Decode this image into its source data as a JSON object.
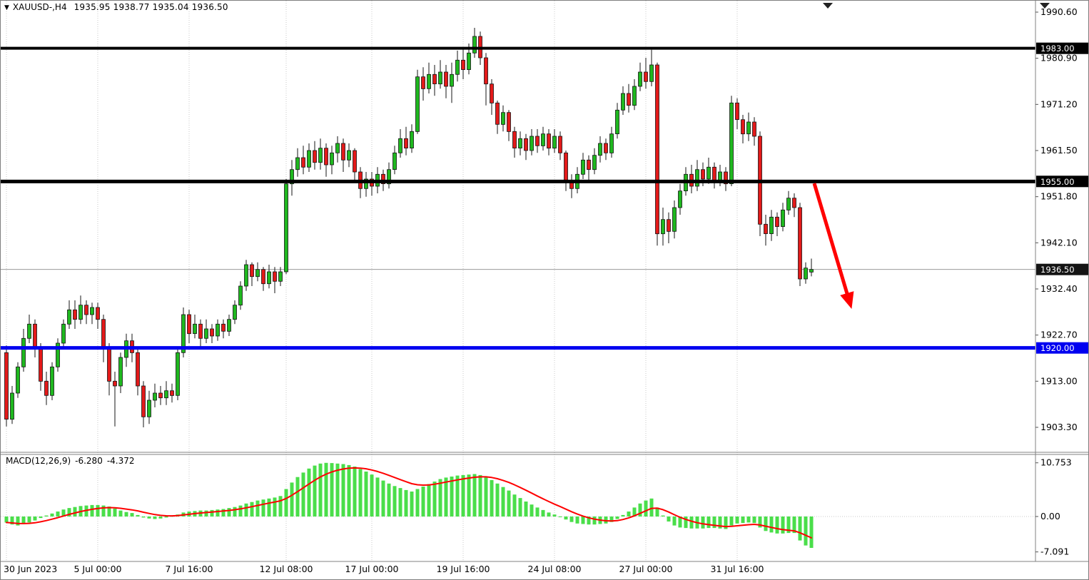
{
  "header": {
    "collapse_icon": "▼",
    "symbol_period": "XAUUSD-,H4",
    "ohlc_values": "1935.95 1938.77 1935.04 1936.50",
    "open": 1935.95,
    "high": 1938.77,
    "low": 1935.04,
    "close": 1936.5
  },
  "macd": {
    "name": "MACD(12,26,9)",
    "main_value": "-6.280",
    "signal_value": "-4.372"
  },
  "colors": {
    "candle_up": "#1fb81f",
    "candle_down": "#e31a1a",
    "candle_border": "#141414",
    "macd_bar": "#4ade4a",
    "signal": "#ff0000",
    "grid": "#c9c9c9",
    "axis_text": "#000000",
    "badge_bg": "#141414",
    "badge_text": "#ffffff",
    "current_line": "#9a9a9a",
    "frame": "#808080"
  },
  "chart_data": {
    "type": "candlestick",
    "symbol": "XAUUSD-",
    "timeframe": "H4",
    "title": "XAUUSD- H4 with MACD(12,26,9)",
    "grid": "vertical-dotted",
    "price_range_visible": [
      1898.2,
      1993.0
    ],
    "price_decimals": 2,
    "price_axis_ticks": [
      1990.6,
      1980.9,
      1971.2,
      1961.5,
      1951.8,
      1942.1,
      1932.4,
      1922.7,
      1913.0,
      1903.3
    ],
    "x_axis_labels": [
      {
        "index": 0,
        "label": "30 Jun 2023"
      },
      {
        "index": 16,
        "label": "5 Jul 00:00"
      },
      {
        "index": 32,
        "label": "7 Jul 16:00"
      },
      {
        "index": 49,
        "label": "12 Jul 08:00"
      },
      {
        "index": 64,
        "label": "17 Jul 00:00"
      },
      {
        "index": 80,
        "label": "19 Jul 16:00"
      },
      {
        "index": 96,
        "label": "24 Jul 08:00"
      },
      {
        "index": 112,
        "label": "27 Jul 00:00"
      },
      {
        "index": 128,
        "label": "31 Jul 16:00"
      }
    ],
    "horizontal_levels": [
      {
        "price": 1983.0,
        "label": "1983.00",
        "color": "#000000",
        "thickness": 4
      },
      {
        "price": 1955.0,
        "label": "1955.00",
        "color": "#000000",
        "thickness": 5
      },
      {
        "price": 1920.0,
        "label": "1920.00",
        "color": "#0000f0",
        "thickness": 5
      }
    ],
    "current_price": {
      "price": 1936.5,
      "label": "1936.50"
    },
    "annotation_arrow": {
      "from_index": 141.5,
      "from_price": 1954.6,
      "to_index": 147.8,
      "to_price": 1929.2,
      "color": "#ff0000"
    },
    "candles": [
      [
        1919.0,
        1920.5,
        1903.5,
        1905.0
      ],
      [
        1905.0,
        1912.0,
        1904.0,
        1910.5
      ],
      [
        1910.5,
        1917.0,
        1909.5,
        1916.0
      ],
      [
        1916.0,
        1924.0,
        1915.0,
        1922.0
      ],
      [
        1922.0,
        1927.0,
        1921.0,
        1925.0
      ],
      [
        1925.0,
        1926.0,
        1918.0,
        1920.0
      ],
      [
        1920.0,
        1921.0,
        1911.0,
        1913.0
      ],
      [
        1913.0,
        1915.0,
        1908.0,
        1910.0
      ],
      [
        1910.0,
        1917.0,
        1909.0,
        1916.0
      ],
      [
        1916.0,
        1922.0,
        1915.0,
        1921.0
      ],
      [
        1921.0,
        1926.0,
        1920.0,
        1925.0
      ],
      [
        1925.0,
        1930.0,
        1924.0,
        1928.0
      ],
      [
        1928.0,
        1930.0,
        1924.0,
        1926.0
      ],
      [
        1926.0,
        1931.0,
        1925.0,
        1929.0
      ],
      [
        1929.0,
        1930.0,
        1925.0,
        1927.0
      ],
      [
        1927.0,
        1929.5,
        1925.0,
        1928.5
      ],
      [
        1928.5,
        1929.5,
        1924.0,
        1926.0
      ],
      [
        1926.0,
        1927.0,
        1917.0,
        1920.0
      ],
      [
        1920.0,
        1921.0,
        1910.0,
        1913.0
      ],
      [
        1913.0,
        1915.0,
        1903.5,
        1912.0
      ],
      [
        1912.0,
        1919.0,
        1910.5,
        1918.0
      ],
      [
        1918.0,
        1923.0,
        1916.0,
        1921.5
      ],
      [
        1921.5,
        1923.0,
        1917.0,
        1919.0
      ],
      [
        1919.0,
        1920.0,
        1910.0,
        1912.0
      ],
      [
        1912.0,
        1913.0,
        1903.3,
        1905.5
      ],
      [
        1905.5,
        1911.0,
        1904.0,
        1909.0
      ],
      [
        1909.0,
        1912.5,
        1907.5,
        1910.5
      ],
      [
        1910.5,
        1912.0,
        1908.0,
        1909.5
      ],
      [
        1909.5,
        1913.0,
        1908.0,
        1911.0
      ],
      [
        1911.0,
        1912.5,
        1908.5,
        1910.0
      ],
      [
        1910.0,
        1920.0,
        1909.0,
        1919.0
      ],
      [
        1919.0,
        1928.5,
        1918.0,
        1927.0
      ],
      [
        1927.0,
        1928.0,
        1921.0,
        1923.0
      ],
      [
        1923.0,
        1927.0,
        1922.0,
        1925.0
      ],
      [
        1925.0,
        1926.0,
        1920.0,
        1922.0
      ],
      [
        1922.0,
        1926.0,
        1921.0,
        1924.0
      ],
      [
        1924.0,
        1925.0,
        1921.0,
        1922.5
      ],
      [
        1922.5,
        1926.0,
        1921.5,
        1925.0
      ],
      [
        1925.0,
        1926.0,
        1922.0,
        1923.5
      ],
      [
        1923.5,
        1927.0,
        1922.5,
        1926.0
      ],
      [
        1926.0,
        1930.0,
        1925.0,
        1929.0
      ],
      [
        1929.0,
        1934.0,
        1928.0,
        1933.0
      ],
      [
        1933.0,
        1938.5,
        1932.0,
        1937.5
      ],
      [
        1937.5,
        1938.0,
        1933.0,
        1935.0
      ],
      [
        1935.0,
        1938.0,
        1934.0,
        1936.5
      ],
      [
        1936.5,
        1937.0,
        1932.0,
        1933.5
      ],
      [
        1933.5,
        1937.5,
        1932.5,
        1936.0
      ],
      [
        1936.0,
        1937.0,
        1931.5,
        1934.0
      ],
      [
        1934.0,
        1937.0,
        1933.0,
        1936.0
      ],
      [
        1936.0,
        1955.5,
        1935.5,
        1954.5
      ],
      [
        1954.5,
        1959.5,
        1952.0,
        1957.5
      ],
      [
        1957.5,
        1962.0,
        1956.0,
        1960.0
      ],
      [
        1960.0,
        1962.5,
        1956.5,
        1958.0
      ],
      [
        1958.0,
        1963.0,
        1957.0,
        1961.5
      ],
      [
        1961.5,
        1963.5,
        1957.5,
        1959.0
      ],
      [
        1959.0,
        1964.0,
        1957.5,
        1962.0
      ],
      [
        1962.0,
        1963.0,
        1956.0,
        1958.5
      ],
      [
        1958.5,
        1962.5,
        1956.5,
        1961.0
      ],
      [
        1961.0,
        1964.5,
        1959.0,
        1963.0
      ],
      [
        1963.0,
        1964.0,
        1957.0,
        1959.5
      ],
      [
        1959.5,
        1963.0,
        1958.0,
        1961.5
      ],
      [
        1961.5,
        1962.0,
        1955.0,
        1957.0
      ],
      [
        1957.0,
        1958.0,
        1951.5,
        1953.5
      ],
      [
        1953.5,
        1957.0,
        1951.8,
        1955.5
      ],
      [
        1955.5,
        1957.0,
        1952.0,
        1954.0
      ],
      [
        1954.0,
        1958.0,
        1952.5,
        1956.5
      ],
      [
        1956.5,
        1957.5,
        1953.0,
        1954.5
      ],
      [
        1954.5,
        1959.0,
        1953.5,
        1957.5
      ],
      [
        1957.5,
        1962.5,
        1956.5,
        1961.0
      ],
      [
        1961.0,
        1966.0,
        1960.0,
        1964.0
      ],
      [
        1964.0,
        1966.5,
        1960.5,
        1962.0
      ],
      [
        1962.0,
        1967.0,
        1961.0,
        1965.5
      ],
      [
        1965.5,
        1978.5,
        1965.0,
        1977.0
      ],
      [
        1977.0,
        1979.0,
        1972.0,
        1974.5
      ],
      [
        1974.5,
        1980.0,
        1973.5,
        1977.5
      ],
      [
        1977.5,
        1979.5,
        1973.0,
        1975.5
      ],
      [
        1975.5,
        1980.5,
        1974.5,
        1978.0
      ],
      [
        1978.0,
        1979.5,
        1972.5,
        1975.0
      ],
      [
        1975.0,
        1980.0,
        1971.5,
        1977.5
      ],
      [
        1977.5,
        1982.5,
        1976.0,
        1980.5
      ],
      [
        1980.5,
        1983.0,
        1976.5,
        1978.5
      ],
      [
        1978.5,
        1984.0,
        1977.5,
        1982.0
      ],
      [
        1982.0,
        1987.3,
        1981.0,
        1985.5
      ],
      [
        1985.5,
        1986.5,
        1979.5,
        1981.0
      ],
      [
        1981.0,
        1982.0,
        1971.0,
        1975.5
      ],
      [
        1975.5,
        1976.5,
        1969.0,
        1971.5
      ],
      [
        1971.5,
        1972.0,
        1965.0,
        1967.0
      ],
      [
        1967.0,
        1971.0,
        1965.5,
        1969.5
      ],
      [
        1969.5,
        1970.0,
        1963.5,
        1965.5
      ],
      [
        1965.5,
        1966.5,
        1960.0,
        1962.0
      ],
      [
        1962.0,
        1965.5,
        1960.5,
        1964.0
      ],
      [
        1964.0,
        1965.0,
        1959.5,
        1961.5
      ],
      [
        1961.5,
        1966.0,
        1960.5,
        1964.5
      ],
      [
        1964.5,
        1966.0,
        1961.0,
        1962.5
      ],
      [
        1962.5,
        1966.5,
        1961.5,
        1965.0
      ],
      [
        1965.0,
        1966.0,
        1960.5,
        1962.0
      ],
      [
        1962.0,
        1966.0,
        1961.0,
        1964.5
      ],
      [
        1964.5,
        1965.5,
        1959.5,
        1961.0
      ],
      [
        1961.0,
        1961.5,
        1953.0,
        1955.0
      ],
      [
        1955.0,
        1956.5,
        1951.5,
        1953.5
      ],
      [
        1953.5,
        1958.0,
        1952.5,
        1956.5
      ],
      [
        1956.5,
        1961.0,
        1955.5,
        1959.5
      ],
      [
        1959.5,
        1960.5,
        1955.0,
        1957.5
      ],
      [
        1957.5,
        1962.0,
        1956.5,
        1960.5
      ],
      [
        1960.5,
        1964.5,
        1959.0,
        1963.0
      ],
      [
        1963.0,
        1964.0,
        1959.5,
        1961.0
      ],
      [
        1961.0,
        1966.5,
        1960.0,
        1965.0
      ],
      [
        1965.0,
        1971.5,
        1964.0,
        1970.0
      ],
      [
        1970.0,
        1975.0,
        1969.0,
        1973.5
      ],
      [
        1973.5,
        1975.5,
        1969.5,
        1971.0
      ],
      [
        1971.0,
        1976.5,
        1970.0,
        1975.0
      ],
      [
        1975.0,
        1980.0,
        1974.0,
        1978.0
      ],
      [
        1978.0,
        1981.0,
        1974.5,
        1976.0
      ],
      [
        1976.0,
        1982.7,
        1975.0,
        1979.5
      ],
      [
        1979.5,
        1980.0,
        1941.5,
        1944.0
      ],
      [
        1944.0,
        1949.5,
        1941.5,
        1947.0
      ],
      [
        1947.0,
        1948.5,
        1942.0,
        1944.5
      ],
      [
        1944.5,
        1951.0,
        1943.0,
        1949.5
      ],
      [
        1949.5,
        1954.5,
        1948.0,
        1953.0
      ],
      [
        1953.0,
        1958.0,
        1952.0,
        1956.5
      ],
      [
        1956.5,
        1958.5,
        1952.5,
        1954.0
      ],
      [
        1954.0,
        1959.5,
        1953.0,
        1957.5
      ],
      [
        1957.5,
        1959.0,
        1954.0,
        1955.5
      ],
      [
        1955.5,
        1960.0,
        1954.5,
        1958.0
      ],
      [
        1958.0,
        1959.0,
        1953.5,
        1955.0
      ],
      [
        1955.0,
        1958.5,
        1954.0,
        1957.0
      ],
      [
        1957.0,
        1958.0,
        1953.0,
        1954.5
      ],
      [
        1954.5,
        1973.0,
        1954.0,
        1971.5
      ],
      [
        1971.5,
        1972.5,
        1966.0,
        1968.0
      ],
      [
        1968.0,
        1969.0,
        1963.0,
        1965.0
      ],
      [
        1965.0,
        1969.5,
        1963.5,
        1967.5
      ],
      [
        1967.5,
        1968.5,
        1962.5,
        1964.5
      ],
      [
        1964.5,
        1965.5,
        1943.5,
        1946.0
      ],
      [
        1946.0,
        1948.0,
        1941.5,
        1944.0
      ],
      [
        1944.0,
        1949.0,
        1942.5,
        1947.5
      ],
      [
        1947.5,
        1948.5,
        1943.5,
        1945.5
      ],
      [
        1945.5,
        1950.5,
        1944.5,
        1949.0
      ],
      [
        1949.0,
        1953.0,
        1948.0,
        1951.5
      ],
      [
        1951.5,
        1952.5,
        1947.5,
        1949.5
      ],
      [
        1949.5,
        1950.5,
        1933.0,
        1934.5
      ],
      [
        1934.5,
        1938.0,
        1933.5,
        1936.8
      ],
      [
        1935.95,
        1938.77,
        1935.04,
        1936.5
      ]
    ],
    "macd_indicator": {
      "type": "histogram+signal",
      "signal_period": 9,
      "axis_ticks": [
        {
          "value": 10.753,
          "label": "10.753"
        },
        {
          "value": 0.0,
          "label": "0.00"
        },
        {
          "value": -7.091,
          "label": "-7.091"
        }
      ],
      "range_visible": [
        -9.0,
        12.4
      ],
      "last_main": -6.28,
      "last_signal": -4.372,
      "histogram": [
        -1.2,
        -1.6,
        -1.8,
        -1.5,
        -1.2,
        -0.8,
        -0.3,
        0.2,
        0.6,
        1.0,
        1.4,
        1.7,
        1.9,
        2.1,
        2.2,
        2.3,
        2.3,
        2.2,
        2.0,
        1.6,
        1.2,
        0.9,
        0.7,
        0.3,
        -0.2,
        -0.4,
        -0.5,
        -0.4,
        -0.2,
        0.1,
        0.4,
        0.8,
        1.0,
        1.1,
        1.2,
        1.2,
        1.3,
        1.4,
        1.5,
        1.7,
        1.9,
        2.2,
        2.6,
        2.9,
        3.2,
        3.4,
        3.6,
        3.8,
        4.1,
        5.5,
        6.8,
        7.9,
        8.8,
        9.6,
        10.2,
        10.6,
        10.75,
        10.7,
        10.6,
        10.5,
        10.3,
        10.0,
        9.5,
        9.0,
        8.4,
        7.8,
        7.2,
        6.6,
        6.1,
        5.7,
        5.3,
        5.0,
        5.5,
        6.0,
        6.5,
        7.0,
        7.5,
        7.8,
        8.0,
        8.2,
        8.3,
        8.4,
        8.5,
        8.3,
        7.9,
        7.3,
        6.6,
        5.9,
        5.2,
        4.4,
        3.7,
        3.0,
        2.4,
        1.8,
        1.3,
        0.8,
        0.4,
        0.0,
        -0.6,
        -1.1,
        -1.4,
        -1.5,
        -1.6,
        -1.6,
        -1.5,
        -1.4,
        -1.1,
        -0.5,
        0.3,
        1.0,
        1.8,
        2.6,
        3.2,
        3.6,
        1.8,
        0.2,
        -1.0,
        -1.8,
        -2.2,
        -2.3,
        -2.4,
        -2.4,
        -2.4,
        -2.3,
        -2.3,
        -2.4,
        -2.5,
        -1.8,
        -1.4,
        -1.3,
        -1.2,
        -1.3,
        -2.2,
        -2.9,
        -3.2,
        -3.4,
        -3.4,
        -3.3,
        -3.3,
        -4.8,
        -5.8,
        -6.28
      ]
    }
  }
}
